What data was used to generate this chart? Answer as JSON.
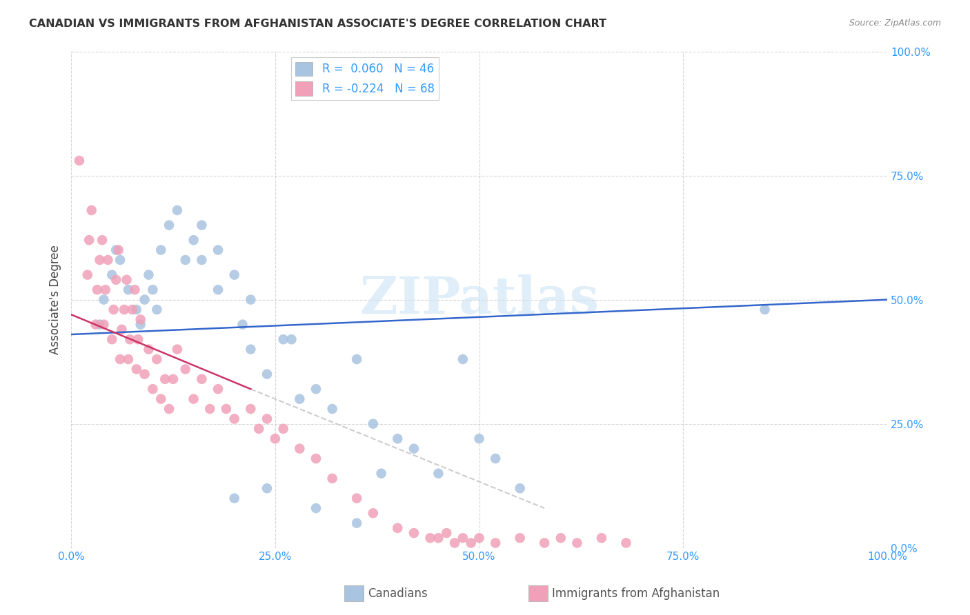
{
  "title": "CANADIAN VS IMMIGRANTS FROM AFGHANISTAN ASSOCIATE'S DEGREE CORRELATION CHART",
  "source": "Source: ZipAtlas.com",
  "ylabel": "Associate's Degree",
  "ytick_labels": [
    "0.0%",
    "25.0%",
    "50.0%",
    "75.0%",
    "100.0%"
  ],
  "ytick_values": [
    0,
    25,
    50,
    75,
    100
  ],
  "xtick_labels": [
    "0.0%",
    "25.0%",
    "50.0%",
    "75.0%",
    "100.0%"
  ],
  "xtick_values": [
    0,
    25,
    50,
    75,
    100
  ],
  "xlim": [
    0,
    100
  ],
  "ylim": [
    0,
    100
  ],
  "legend_R_blue": "R =  0.060",
  "legend_N_blue": "N = 46",
  "legend_R_pink": "R = -0.224",
  "legend_N_pink": "N = 68",
  "blue_color": "#a8c4e0",
  "pink_color": "#f0a0b8",
  "trend_blue_color": "#3366cc",
  "trend_pink_color": "#cc3366",
  "trend_gray_color": "#cccccc",
  "axis_color": "#3399ff",
  "background_color": "#ffffff",
  "watermark": "ZIPatlas",
  "blue_x": [
    3.5,
    4,
    5,
    5.5,
    6,
    7,
    8,
    8.5,
    9,
    9.5,
    10,
    10.5,
    11,
    12,
    13,
    14,
    15,
    16,
    18,
    20,
    21,
    22,
    24,
    26,
    28,
    30,
    32,
    35,
    37,
    38,
    40,
    42,
    45,
    50,
    55,
    85,
    27,
    48,
    52,
    20,
    24,
    30,
    35,
    22,
    18,
    16
  ],
  "blue_y": [
    45,
    50,
    55,
    60,
    58,
    52,
    48,
    45,
    50,
    55,
    52,
    48,
    60,
    65,
    68,
    58,
    62,
    58,
    52,
    55,
    45,
    50,
    35,
    42,
    30,
    32,
    28,
    38,
    25,
    15,
    22,
    20,
    15,
    22,
    12,
    48,
    42,
    38,
    18,
    10,
    12,
    8,
    5,
    40,
    60,
    65
  ],
  "pink_x": [
    1,
    2,
    2.2,
    2.5,
    3,
    3.2,
    3.5,
    3.8,
    4,
    4.2,
    4.5,
    5,
    5.2,
    5.5,
    5.8,
    6,
    6.2,
    6.5,
    6.8,
    7,
    7.2,
    7.5,
    7.8,
    8,
    8.2,
    8.5,
    9,
    9.5,
    10,
    10.5,
    11,
    11.5,
    12,
    12.5,
    13,
    14,
    15,
    16,
    17,
    18,
    19,
    20,
    22,
    23,
    24,
    25,
    26,
    28,
    30,
    32,
    35,
    37,
    40,
    42,
    44,
    45,
    46,
    47,
    48,
    49,
    50,
    52,
    55,
    58,
    60,
    62,
    65,
    68
  ],
  "pink_y": [
    78,
    55,
    62,
    68,
    45,
    52,
    58,
    62,
    45,
    52,
    58,
    42,
    48,
    54,
    60,
    38,
    44,
    48,
    54,
    38,
    42,
    48,
    52,
    36,
    42,
    46,
    35,
    40,
    32,
    38,
    30,
    34,
    28,
    34,
    40,
    36,
    30,
    34,
    28,
    32,
    28,
    26,
    28,
    24,
    26,
    22,
    24,
    20,
    18,
    14,
    10,
    7,
    4,
    3,
    2,
    2,
    3,
    1,
    2,
    1,
    2,
    1,
    2,
    1,
    2,
    1,
    2,
    1
  ],
  "blue_trend_x": [
    0,
    100
  ],
  "blue_trend_y": [
    43,
    50
  ],
  "pink_trend_x": [
    0,
    22
  ],
  "pink_trend_y": [
    47,
    32
  ],
  "gray_trend_x": [
    22,
    58
  ],
  "gray_trend_y": [
    32,
    8
  ]
}
